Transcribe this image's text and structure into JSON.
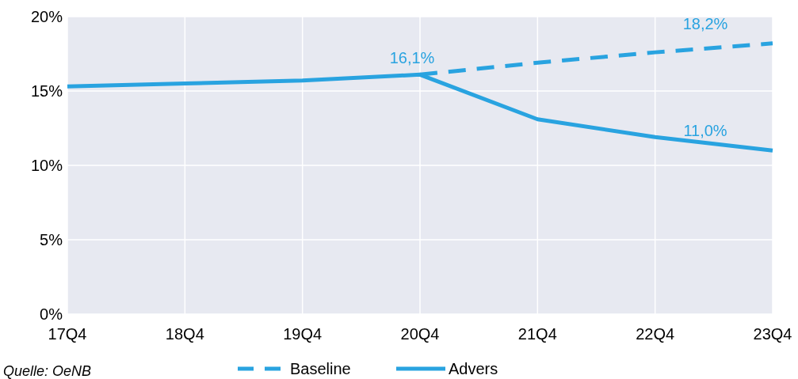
{
  "chart_data": {
    "type": "line",
    "categories": [
      "17Q4",
      "18Q4",
      "19Q4",
      "20Q4",
      "21Q4",
      "22Q4",
      "23Q4"
    ],
    "series": [
      {
        "name": "Baseline",
        "color": "#29a3e0",
        "line_style": "dashed",
        "values": [
          null,
          null,
          null,
          16.1,
          16.9,
          17.6,
          18.2
        ]
      },
      {
        "name": "Advers",
        "color": "#29a3e0",
        "line_style": "solid",
        "values": [
          15.3,
          15.5,
          15.7,
          16.1,
          13.1,
          11.9,
          11.0
        ]
      }
    ],
    "ylim": [
      0,
      20
    ],
    "yticks": [
      {
        "value": 0,
        "label": "0%"
      },
      {
        "value": 5,
        "label": "5%"
      },
      {
        "value": 10,
        "label": "10%"
      },
      {
        "value": 15,
        "label": "15%"
      },
      {
        "value": 20,
        "label": "20%"
      }
    ],
    "grid": true,
    "legend": "bottom",
    "annotations": [
      {
        "text": "16,1%",
        "x": "20Q4",
        "y": 16.1
      },
      {
        "text": "18,2%",
        "x": "23Q4",
        "y": 18.2
      },
      {
        "text": "11,0%",
        "x": "23Q4",
        "y": 11.0
      },
      "Quelle: OeNB"
    ]
  }
}
